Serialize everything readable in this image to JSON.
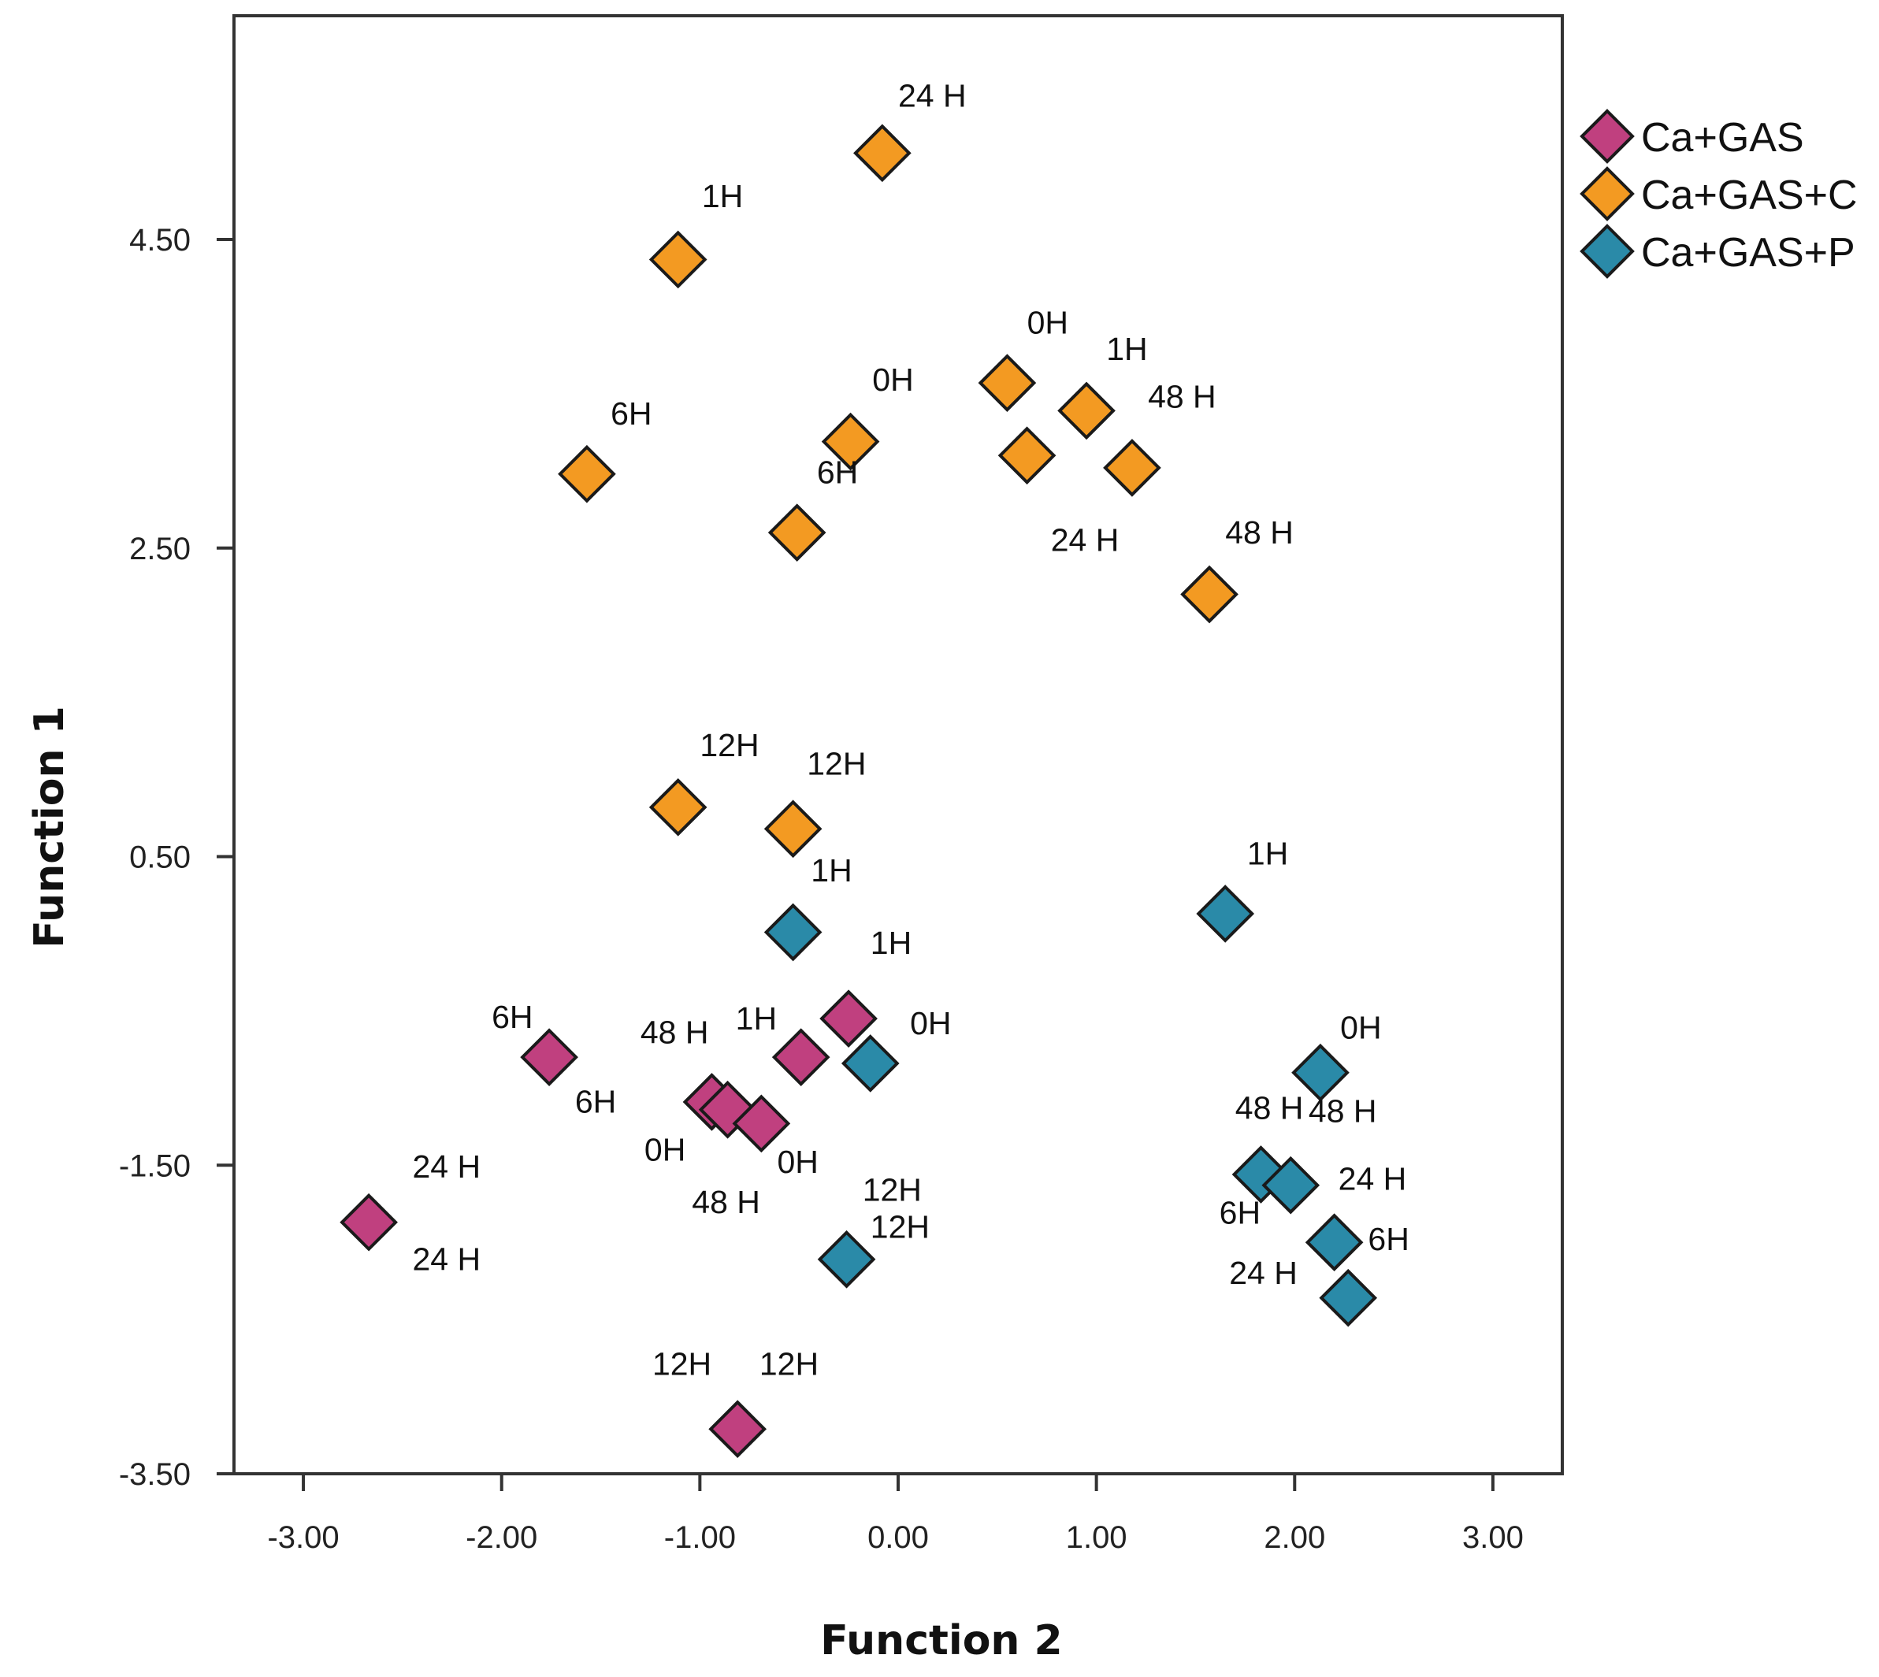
{
  "chart_data": {
    "type": "scatter",
    "xlabel": "Function 2",
    "ylabel": "Function 1",
    "xlim": [
      -3.35,
      3.35
    ],
    "ylim": [
      -3.5,
      5.95
    ],
    "x_ticks": [
      -3.0,
      -2.0,
      -1.0,
      0.0,
      1.0,
      2.0,
      3.0
    ],
    "x_tick_labels": [
      "-3.00",
      "-2.00",
      "-1.00",
      "0.00",
      "1.00",
      "2.00",
      "3.00"
    ],
    "y_ticks": [
      -3.5,
      -1.5,
      0.5,
      2.5,
      4.5
    ],
    "y_tick_labels": [
      "-3.50",
      "-1.50",
      "0.50",
      "2.50",
      "4.50"
    ],
    "grid": false,
    "legend_position": "top-right, outside plot",
    "series": [
      {
        "name": "Ca+GAS",
        "color": "#c0407f",
        "points": [
          {
            "x": -2.67,
            "y": -1.87
          },
          {
            "x": -1.76,
            "y": -0.8
          },
          {
            "x": -0.94,
            "y": -1.09
          },
          {
            "x": -0.86,
            "y": -1.14
          },
          {
            "x": -0.69,
            "y": -1.23
          },
          {
            "x": -0.49,
            "y": -0.8
          },
          {
            "x": -0.25,
            "y": -0.55
          },
          {
            "x": -0.81,
            "y": -3.21
          }
        ],
        "labels": [
          {
            "text": "24 H",
            "x": -2.45,
            "y": -1.58
          },
          {
            "text": "24 H",
            "x": -2.45,
            "y": -2.18
          },
          {
            "text": "6H",
            "x": -2.05,
            "y": -0.61
          },
          {
            "text": "6H",
            "x": -1.63,
            "y": -1.16
          },
          {
            "text": "48 H",
            "x": -1.3,
            "y": -0.71
          },
          {
            "text": "1H",
            "x": -0.82,
            "y": -0.62
          },
          {
            "text": "1H",
            "x": -0.14,
            "y": -0.13
          },
          {
            "text": "0H",
            "x": -1.28,
            "y": -1.47
          },
          {
            "text": "0H",
            "x": -0.61,
            "y": -1.55
          },
          {
            "text": "48 H",
            "x": -1.04,
            "y": -1.81
          },
          {
            "text": "12H",
            "x": -1.24,
            "y": -2.86
          },
          {
            "text": "12H",
            "x": -0.7,
            "y": -2.86
          }
        ]
      },
      {
        "name": "Ca+GAS+C",
        "color": "#f39a22",
        "points": [
          {
            "x": -0.08,
            "y": 5.06
          },
          {
            "x": -1.11,
            "y": 4.37
          },
          {
            "x": 0.55,
            "y": 3.57
          },
          {
            "x": 0.95,
            "y": 3.39
          },
          {
            "x": -0.24,
            "y": 3.19
          },
          {
            "x": 0.65,
            "y": 3.1
          },
          {
            "x": 1.18,
            "y": 3.02
          },
          {
            "x": -1.57,
            "y": 2.98
          },
          {
            "x": -0.51,
            "y": 2.6
          },
          {
            "x": 1.57,
            "y": 2.2
          },
          {
            "x": -1.11,
            "y": 0.82
          },
          {
            "x": -0.53,
            "y": 0.68
          }
        ],
        "labels": [
          {
            "text": "24 H",
            "x": 0.0,
            "y": 5.36
          },
          {
            "text": "1H",
            "x": -0.99,
            "y": 4.71
          },
          {
            "text": "0H",
            "x": 0.65,
            "y": 3.89
          },
          {
            "text": "1H",
            "x": 1.05,
            "y": 3.72
          },
          {
            "text": "48 H",
            "x": 1.26,
            "y": 3.41
          },
          {
            "text": "0H",
            "x": -0.13,
            "y": 3.52
          },
          {
            "text": "6H",
            "x": -1.45,
            "y": 3.3
          },
          {
            "text": "6H",
            "x": -0.41,
            "y": 2.92
          },
          {
            "text": "24 H",
            "x": 0.77,
            "y": 2.48
          },
          {
            "text": "48 H",
            "x": 1.65,
            "y": 2.53
          },
          {
            "text": "12H",
            "x": -1.0,
            "y": 1.15
          },
          {
            "text": "12H",
            "x": -0.46,
            "y": 1.03
          }
        ]
      },
      {
        "name": "Ca+GAS+P",
        "color": "#2a8aa8",
        "points": [
          {
            "x": -0.53,
            "y": 0.01
          },
          {
            "x": 1.65,
            "y": 0.13
          },
          {
            "x": -0.14,
            "y": -0.84
          },
          {
            "x": 2.13,
            "y": -0.9
          },
          {
            "x": 1.83,
            "y": -1.56
          },
          {
            "x": 1.98,
            "y": -1.63
          },
          {
            "x": 2.2,
            "y": -2.0
          },
          {
            "x": 2.27,
            "y": -2.36
          },
          {
            "x": -0.26,
            "y": -2.11
          }
        ],
        "labels": [
          {
            "text": "1H",
            "x": -0.44,
            "y": 0.34
          },
          {
            "text": "1H",
            "x": 1.76,
            "y": 0.45
          },
          {
            "text": "0H",
            "x": 0.06,
            "y": -0.65
          },
          {
            "text": "0H",
            "x": 2.23,
            "y": -0.68
          },
          {
            "text": "48 H",
            "x": 1.7,
            "y": -1.2
          },
          {
            "text": "48 H",
            "x": 2.07,
            "y": -1.22
          },
          {
            "text": "24 H",
            "x": 2.22,
            "y": -1.66
          },
          {
            "text": "6H",
            "x": 1.62,
            "y": -1.88
          },
          {
            "text": "6H",
            "x": 2.37,
            "y": -2.05
          },
          {
            "text": "24 H",
            "x": 1.67,
            "y": -2.27
          },
          {
            "text": "12H",
            "x": -0.18,
            "y": -1.73
          },
          {
            "text": "12H",
            "x": -0.14,
            "y": -1.97
          }
        ]
      }
    ]
  }
}
